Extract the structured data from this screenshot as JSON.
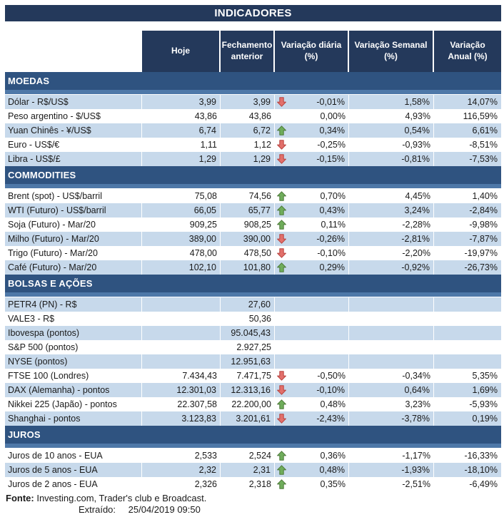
{
  "title": "INDICADORES",
  "columns": [
    {
      "line1": "Hoje",
      "line2": ""
    },
    {
      "line1": "Fechamento",
      "line2": "anterior"
    },
    {
      "line1": "Variação diária",
      "line2": "(%)"
    },
    {
      "line1": "Variação Semanal",
      "line2": "(%)"
    },
    {
      "line1": "Variação",
      "line2": "Anual (%)"
    }
  ],
  "sections": [
    {
      "name": "MOEDAS",
      "first_row_shaded": true,
      "rows": [
        {
          "label": "Dólar - R$/US$",
          "hoje": "3,99",
          "fechamento": "3,99",
          "arrow": "down",
          "daily": "-0,01%",
          "weekly": "1,58%",
          "annual": "14,07%"
        },
        {
          "label": "Peso argentino - $/US$",
          "hoje": "43,86",
          "fechamento": "43,86",
          "arrow": "",
          "daily": "0,00%",
          "weekly": "4,93%",
          "annual": "116,59%"
        },
        {
          "label": "Yuan Chinês - ¥/US$",
          "hoje": "6,74",
          "fechamento": "6,72",
          "arrow": "up",
          "daily": "0,34%",
          "weekly": "0,54%",
          "annual": "6,61%"
        },
        {
          "label": "Euro - US$/€",
          "hoje": "1,11",
          "fechamento": "1,12",
          "arrow": "down",
          "daily": "-0,25%",
          "weekly": "-0,93%",
          "annual": "-8,51%"
        },
        {
          "label": "Libra - US$/£",
          "hoje": "1,29",
          "fechamento": "1,29",
          "arrow": "down",
          "daily": "-0,15%",
          "weekly": "-0,81%",
          "annual": "-7,53%"
        }
      ]
    },
    {
      "name": "COMMODITIES",
      "first_row_shaded": false,
      "rows": [
        {
          "label": "Brent (spot) - US$/barril",
          "hoje": "75,08",
          "fechamento": "74,56",
          "arrow": "up",
          "daily": "0,70%",
          "weekly": "4,45%",
          "annual": "1,40%"
        },
        {
          "label": "WTI (Futuro) - US$/barril",
          "hoje": "66,05",
          "fechamento": "65,77",
          "arrow": "up",
          "daily": "0,43%",
          "weekly": "3,24%",
          "annual": "-2,84%"
        },
        {
          "label": "Soja (Futuro) - Mar/20",
          "hoje": "909,25",
          "fechamento": "908,25",
          "arrow": "up",
          "daily": "0,11%",
          "weekly": "-2,28%",
          "annual": "-9,98%"
        },
        {
          "label": "Milho (Futuro) - Mar/20",
          "hoje": "389,00",
          "fechamento": "390,00",
          "arrow": "down",
          "daily": "-0,26%",
          "weekly": "-2,81%",
          "annual": "-7,87%"
        },
        {
          "label": "Trigo (Futuro) - Mar/20",
          "hoje": "478,00",
          "fechamento": "478,50",
          "arrow": "down",
          "daily": "-0,10%",
          "weekly": "-2,20%",
          "annual": "-19,97%"
        },
        {
          "label": "Café (Futuro) - Mar/20",
          "hoje": "102,10",
          "fechamento": "101,80",
          "arrow": "up",
          "daily": "0,29%",
          "weekly": "-0,92%",
          "annual": "-26,73%"
        }
      ]
    },
    {
      "name": "BOLSAS E AÇÕES",
      "first_row_shaded": true,
      "rows": [
        {
          "label": "PETR4 (PN) - R$",
          "hoje": "",
          "fechamento": "27,60",
          "arrow": "",
          "daily": "",
          "weekly": "",
          "annual": ""
        },
        {
          "label": "VALE3 - R$",
          "hoje": "",
          "fechamento": "50,36",
          "arrow": "",
          "daily": "",
          "weekly": "",
          "annual": ""
        },
        {
          "label": "Ibovespa (pontos)",
          "hoje": "",
          "fechamento": "95.045,43",
          "arrow": "",
          "daily": "",
          "weekly": "",
          "annual": ""
        },
        {
          "label": "S&P 500 (pontos)",
          "hoje": "",
          "fechamento": "2.927,25",
          "arrow": "",
          "daily": "",
          "weekly": "",
          "annual": ""
        },
        {
          "label": "NYSE (pontos)",
          "hoje": "",
          "fechamento": "12.951,63",
          "arrow": "",
          "daily": "",
          "weekly": "",
          "annual": ""
        },
        {
          "label": "FTSE 100 (Londres)",
          "hoje": "7.434,43",
          "fechamento": "7.471,75",
          "arrow": "down",
          "daily": "-0,50%",
          "weekly": "-0,34%",
          "annual": "5,35%"
        },
        {
          "label": "DAX (Alemanha) - pontos",
          "hoje": "12.301,03",
          "fechamento": "12.313,16",
          "arrow": "down",
          "daily": "-0,10%",
          "weekly": "0,64%",
          "annual": "1,69%"
        },
        {
          "label": "Nikkei 225 (Japão) - pontos",
          "hoje": "22.307,58",
          "fechamento": "22.200,00",
          "arrow": "up",
          "daily": "0,48%",
          "weekly": "3,23%",
          "annual": "-5,93%"
        },
        {
          "label": "Shanghai - pontos",
          "hoje": "3.123,83",
          "fechamento": "3.201,61",
          "arrow": "down",
          "daily": "-2,43%",
          "weekly": "-3,78%",
          "annual": "0,19%"
        }
      ]
    },
    {
      "name": "JUROS",
      "first_row_shaded": false,
      "rows": [
        {
          "label": "Juros de 10 anos - EUA",
          "hoje": "2,533",
          "fechamento": "2,524",
          "arrow": "up",
          "daily": "0,36%",
          "weekly": "-1,17%",
          "annual": "-16,33%"
        },
        {
          "label": "Juros de 5 anos - EUA",
          "hoje": "2,32",
          "fechamento": "2,31",
          "arrow": "up",
          "daily": "0,48%",
          "weekly": "-1,93%",
          "annual": "-18,10%"
        },
        {
          "label": "Juros de 2 anos - EUA",
          "hoje": "2,326",
          "fechamento": "2,318",
          "arrow": "up",
          "daily": "0,35%",
          "weekly": "-2,51%",
          "annual": "-6,49%"
        }
      ]
    }
  ],
  "footer": {
    "fonte_label": "Fonte:",
    "fonte_text": "Investing.com, Trader's club e Broadcast.",
    "extraido_label": "Extraído:",
    "extraido_value": "25/04/2019 09:50"
  },
  "colors": {
    "header_navy": "#24395B",
    "section_dark": "#2F5380",
    "section_light": "#4E78A8",
    "row_shade": "#C7D9EB",
    "arrow_up_fill": "#6FAD5B",
    "arrow_up_stroke": "#4E7B3A",
    "arrow_down_fill": "#E2706B",
    "arrow_down_stroke": "#B8423E"
  }
}
